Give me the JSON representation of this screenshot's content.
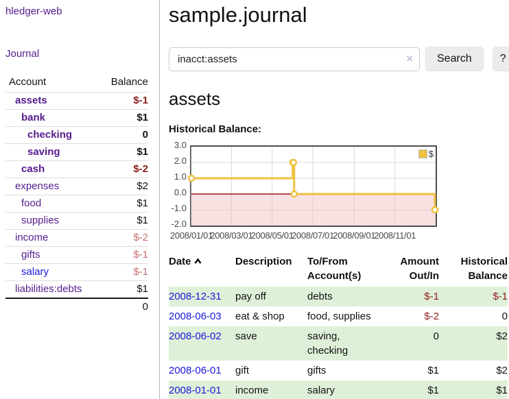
{
  "colors": {
    "link_purple": "#551b8d",
    "link_blue": "#1717d9",
    "negative_bold": "#8c1b1b",
    "negative_light": "#c26e6e",
    "stripe_green": "#dff0d8",
    "chart_line_gold": "#EDC240",
    "chart_negative_region": "#f5bcbc",
    "chart_zero_line": "#9c1414"
  },
  "sidebar": {
    "brand": "hledger-web",
    "nav_journal": "Journal",
    "accounts_table": {
      "headers": [
        "Account",
        "Balance"
      ],
      "rows": [
        {
          "name": "assets",
          "balance": "$-1",
          "depth": 1,
          "bold": true,
          "negative": true
        },
        {
          "name": "bank",
          "balance": "$1",
          "depth": 2,
          "bold": true,
          "negative": false
        },
        {
          "name": "checking",
          "balance": "0",
          "depth": 3,
          "bold": true,
          "negative": false
        },
        {
          "name": "saving",
          "balance": "$1",
          "depth": 3,
          "bold": true,
          "negative": false
        },
        {
          "name": "cash",
          "balance": "$-2",
          "depth": 2,
          "bold": true,
          "negative": true
        },
        {
          "name": "expenses",
          "balance": "$2",
          "depth": 1,
          "bold": false,
          "negative": false
        },
        {
          "name": "food",
          "balance": "$1",
          "depth": 2,
          "bold": false,
          "negative": false
        },
        {
          "name": "supplies",
          "balance": "$1",
          "depth": 2,
          "bold": false,
          "negative": false
        },
        {
          "name": "income",
          "balance": "$-2",
          "depth": 1,
          "bold": false,
          "negative": true
        },
        {
          "name": "gifts",
          "balance": "$-1",
          "depth": 2,
          "bold": false,
          "negative": true
        },
        {
          "name": "salary",
          "balance": "$-1",
          "depth": 2,
          "bold": false,
          "negative": true,
          "link_color": "#1717d9"
        },
        {
          "name": "liabilities:debts",
          "balance": "$1",
          "depth": 1,
          "bold": false,
          "negative": false
        }
      ],
      "total": "0"
    }
  },
  "main": {
    "title": "sample.journal",
    "search": {
      "value": "inacct:assets",
      "clear_icon": "×",
      "button_label": "Search",
      "help_label": "?"
    },
    "account_heading": "assets",
    "chart_title": "Historical Balance:"
  },
  "chart_data": {
    "type": "line",
    "steps": true,
    "title": "Historical Balance:",
    "series": [
      {
        "name": "$",
        "color": "#EDC240",
        "points": [
          [
            "2008-01-01",
            1
          ],
          [
            "2008-06-01",
            2
          ],
          [
            "2008-06-02",
            2
          ],
          [
            "2008-06-03",
            0
          ],
          [
            "2008-12-31",
            -1
          ]
        ]
      }
    ],
    "xlim": [
      "2008-01-01",
      "2009-01-01"
    ],
    "ylim": [
      -2,
      3
    ],
    "yticks": [
      "3.0",
      "2.0",
      "1.0",
      "0.0",
      "-1.0",
      "-2.0"
    ],
    "xticks": [
      "2008/01/01",
      "2008/03/01",
      "2008/05/01",
      "2008/07/01",
      "2008/09/01",
      "2008/11/01"
    ],
    "grid": true,
    "legend_position": "top-right",
    "negative_region_shaded": true
  },
  "register": {
    "headers": [
      "Date",
      "Description",
      "To/From Account(s)",
      "Amount Out/In",
      "Historical Balance"
    ],
    "sort_icon": "chevron-up",
    "rows": [
      {
        "date": "2008-12-31",
        "description": "pay off",
        "accounts": "debts",
        "amount": "$-1",
        "balance": "$-1",
        "amount_negative": true,
        "balance_negative": true
      },
      {
        "date": "2008-06-03",
        "description": "eat & shop",
        "accounts": "food, supplies",
        "amount": "$-2",
        "balance": "0",
        "amount_negative": true,
        "balance_negative": false
      },
      {
        "date": "2008-06-02",
        "description": "save",
        "accounts": "saving, checking",
        "amount": "0",
        "balance": "$2",
        "amount_negative": false,
        "balance_negative": false
      },
      {
        "date": "2008-06-01",
        "description": "gift",
        "accounts": "gifts",
        "amount": "$1",
        "balance": "$2",
        "amount_negative": false,
        "balance_negative": false
      },
      {
        "date": "2008-01-01",
        "description": "income",
        "accounts": "salary",
        "amount": "$1",
        "balance": "$1",
        "amount_negative": false,
        "balance_negative": false
      }
    ]
  }
}
